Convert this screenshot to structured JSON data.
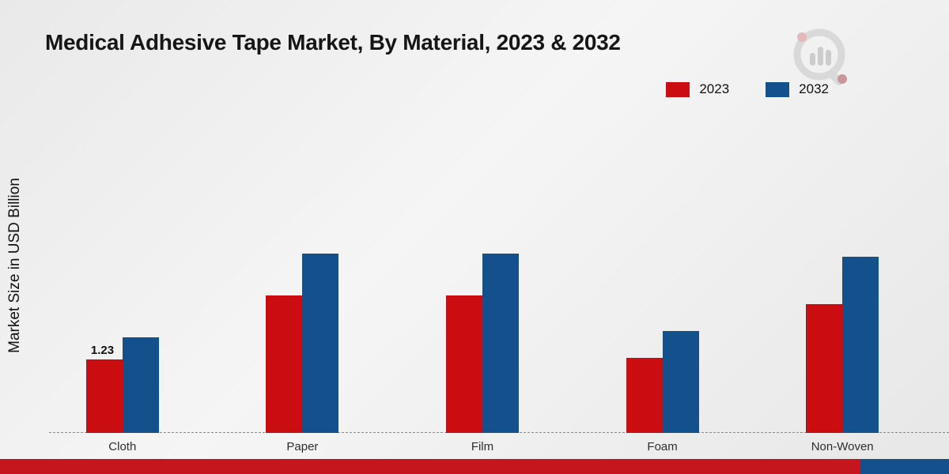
{
  "title": "Medical Adhesive Tape Market, By Material, 2023 & 2032",
  "ylabel": "Market Size in USD Billion",
  "colors": {
    "series_2023": "#c90d11",
    "series_2032": "#14508c",
    "footer_red": "#c4161c",
    "footer_blue": "#14508c",
    "logo_gray": "#d6d6d6",
    "logo_accent": "#c4161c"
  },
  "legend": [
    {
      "label": "2023",
      "color": "#c90d11"
    },
    {
      "label": "2032",
      "color": "#14508c"
    }
  ],
  "chart_data": {
    "type": "bar",
    "title": "Medical Adhesive Tape Market, By Material, 2023 & 2032",
    "xlabel": "",
    "ylabel": "Market Size in USD Billion",
    "categories": [
      "Cloth",
      "Paper",
      "Film",
      "Foam",
      "Non-Woven"
    ],
    "series": [
      {
        "name": "2023",
        "color": "#c90d11",
        "values": [
          1.23,
          2.3,
          2.3,
          1.25,
          2.15
        ],
        "labels": [
          "1.23",
          "",
          "",
          "",
          ""
        ]
      },
      {
        "name": "2032",
        "color": "#14508c",
        "values": [
          1.6,
          3.0,
          3.0,
          1.7,
          2.95
        ],
        "labels": [
          "",
          "",
          "",
          "",
          ""
        ]
      }
    ],
    "ylim": [
      0,
      3.3
    ],
    "grid": false,
    "baseline_style": "dashed",
    "legend_position": "top-right",
    "annotations": [
      "1.23"
    ]
  }
}
